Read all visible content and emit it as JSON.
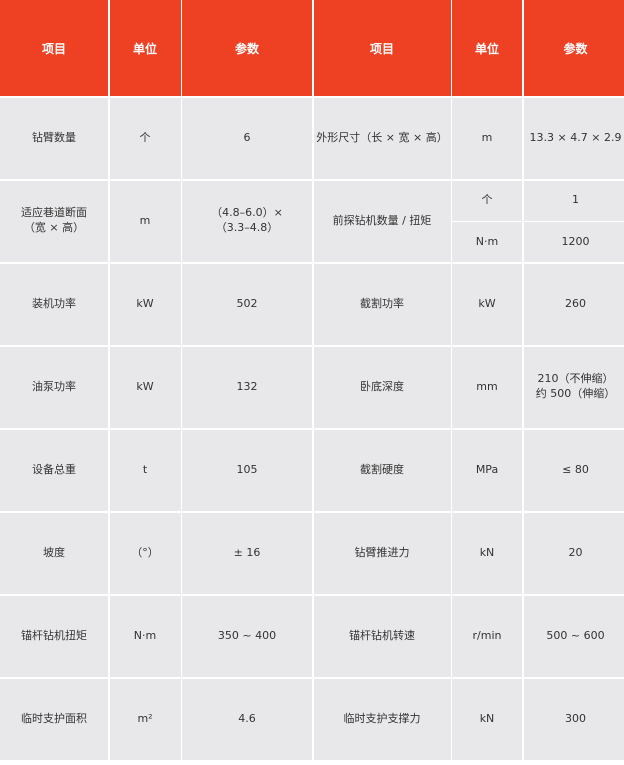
{
  "colors": {
    "header_bg": "#ee4023",
    "cell_bg": "#e8e8ea"
  },
  "headers": [
    "项目",
    "单位",
    "参数",
    "项目",
    "单位",
    "参数"
  ],
  "rows": [
    {
      "left": [
        "钻臂数量",
        "个",
        "6"
      ],
      "right": [
        "外形尺寸（长 × 宽 × 高）",
        "m",
        "13.3 × 4.7 × 2.9"
      ]
    },
    {
      "left": [
        "适应巷道断面\n（宽 × 高）",
        "m",
        "（4.8–6.0）×\n（3.3–4.8）"
      ],
      "right_item": "前探钻机数量 / 扭矩",
      "right_sub": [
        [
          "个",
          "1"
        ],
        [
          "N·m",
          "1200"
        ]
      ]
    },
    {
      "left": [
        "装机功率",
        "kW",
        "502"
      ],
      "right": [
        "截割功率",
        "kW",
        "260"
      ]
    },
    {
      "left": [
        "油泵功率",
        "kW",
        "132"
      ],
      "right": [
        "卧底深度",
        "mm",
        "210（不伸缩）\n约 500（伸缩）"
      ]
    },
    {
      "left": [
        "设备总重",
        "t",
        "105"
      ],
      "right": [
        "截割硬度",
        "MPa",
        "≤ 80"
      ]
    },
    {
      "left": [
        "坡度",
        "（°）",
        "± 16"
      ],
      "right": [
        "钻臂推进力",
        "kN",
        "20"
      ]
    },
    {
      "left": [
        "锚杆钻机扭矩",
        "N·m",
        "350 ~ 400"
      ],
      "right": [
        "锚杆钻机转速",
        "r/min",
        "500 ~ 600"
      ]
    },
    {
      "left": [
        "临时支护面积",
        "m²",
        "4.6"
      ],
      "right": [
        "临时支护支撑力",
        "kN",
        "300"
      ]
    }
  ]
}
